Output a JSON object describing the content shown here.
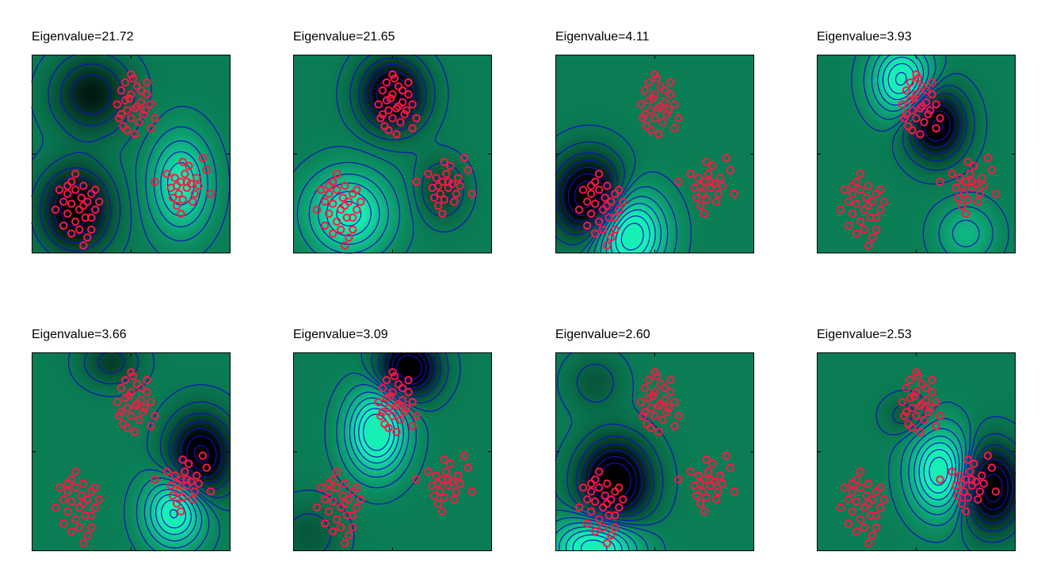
{
  "chart_data": [
    {
      "type": "heatmap",
      "title": "Eigenvalue=21.72",
      "xlim": [
        0,
        1
      ],
      "ylim": [
        0,
        1
      ],
      "colormap": [
        "#000000",
        "#0a7d55",
        "#16f0b4"
      ],
      "contour_color": "#1010c0",
      "marker_color": "#ff1744",
      "gaussians": [
        {
          "cx": 0.3,
          "cy": 0.8,
          "sx": 0.13,
          "sy": 0.13,
          "a": -0.8
        },
        {
          "cx": 0.22,
          "cy": 0.22,
          "sx": 0.12,
          "sy": 0.14,
          "a": -1.2
        },
        {
          "cx": 0.75,
          "cy": 0.35,
          "sx": 0.1,
          "sy": 0.16,
          "a": 1.0
        }
      ]
    },
    {
      "type": "heatmap",
      "title": "Eigenvalue=21.65",
      "xlim": [
        0,
        1
      ],
      "ylim": [
        0,
        1
      ],
      "colormap": [
        "#000000",
        "#0a7d55",
        "#16f0b4"
      ],
      "contour_color": "#1010c0",
      "marker_color": "#ff1744",
      "gaussians": [
        {
          "cx": 0.5,
          "cy": 0.8,
          "sx": 0.11,
          "sy": 0.12,
          "a": -1.3
        },
        {
          "cx": 0.28,
          "cy": 0.2,
          "sx": 0.14,
          "sy": 0.14,
          "a": 1.1
        },
        {
          "cx": 0.75,
          "cy": 0.32,
          "sx": 0.08,
          "sy": 0.1,
          "a": -0.5
        }
      ]
    },
    {
      "type": "heatmap",
      "title": "Eigenvalue=4.11",
      "xlim": [
        0,
        1
      ],
      "ylim": [
        0,
        1
      ],
      "colormap": [
        "#000000",
        "#0a7d55",
        "#16f0b4"
      ],
      "contour_color": "#1010c0",
      "marker_color": "#ff1744",
      "gaussians": [
        {
          "cx": 0.17,
          "cy": 0.28,
          "sx": 0.12,
          "sy": 0.14,
          "a": -1.5
        },
        {
          "cx": 0.37,
          "cy": 0.1,
          "sx": 0.12,
          "sy": 0.14,
          "a": 1.5
        }
      ]
    },
    {
      "type": "heatmap",
      "title": "Eigenvalue=3.93",
      "xlim": [
        0,
        1
      ],
      "ylim": [
        0,
        1
      ],
      "colormap": [
        "#000000",
        "#0a7d55",
        "#16f0b4"
      ],
      "contour_color": "#1010c0",
      "marker_color": "#ff1744",
      "gaussians": [
        {
          "cx": 0.43,
          "cy": 0.87,
          "sx": 0.1,
          "sy": 0.12,
          "a": 1.3
        },
        {
          "cx": 0.6,
          "cy": 0.65,
          "sx": 0.1,
          "sy": 0.12,
          "a": -1.3
        },
        {
          "cx": 0.75,
          "cy": 0.1,
          "sx": 0.1,
          "sy": 0.1,
          "a": 0.5
        }
      ]
    },
    {
      "type": "heatmap",
      "title": "Eigenvalue=3.66",
      "xlim": [
        0,
        1
      ],
      "ylim": [
        0,
        1
      ],
      "colormap": [
        "#000000",
        "#0a7d55",
        "#16f0b4"
      ],
      "contour_color": "#1010c0",
      "marker_color": "#ff1744",
      "gaussians": [
        {
          "cx": 0.85,
          "cy": 0.48,
          "sx": 0.11,
          "sy": 0.14,
          "a": -1.3
        },
        {
          "cx": 0.72,
          "cy": 0.2,
          "sx": 0.1,
          "sy": 0.12,
          "a": 1.3
        },
        {
          "cx": 0.4,
          "cy": 0.95,
          "sx": 0.1,
          "sy": 0.08,
          "a": -0.5
        }
      ]
    },
    {
      "type": "heatmap",
      "title": "Eigenvalue=3.09",
      "xlim": [
        0,
        1
      ],
      "ylim": [
        0,
        1
      ],
      "colormap": [
        "#000000",
        "#0a7d55",
        "#16f0b4"
      ],
      "contour_color": "#1010c0",
      "marker_color": "#ff1744",
      "gaussians": [
        {
          "cx": 0.58,
          "cy": 0.92,
          "sx": 0.1,
          "sy": 0.1,
          "a": -1.5
        },
        {
          "cx": 0.42,
          "cy": 0.6,
          "sx": 0.1,
          "sy": 0.14,
          "a": 1.5
        },
        {
          "cx": 0.08,
          "cy": 0.08,
          "sx": 0.12,
          "sy": 0.12,
          "a": -0.3
        }
      ]
    },
    {
      "type": "heatmap",
      "title": "Eigenvalue=2.60",
      "xlim": [
        0,
        1
      ],
      "ylim": [
        0,
        1
      ],
      "colormap": [
        "#000000",
        "#0a7d55",
        "#16f0b4"
      ],
      "contour_color": "#1010c0",
      "marker_color": "#ff1744",
      "gaussians": [
        {
          "cx": 0.3,
          "cy": 0.35,
          "sx": 0.12,
          "sy": 0.14,
          "a": -1.5
        },
        {
          "cx": 0.2,
          "cy": 0.02,
          "sx": 0.14,
          "sy": 0.1,
          "a": 1.4
        },
        {
          "cx": 0.2,
          "cy": 0.85,
          "sx": 0.1,
          "sy": 0.1,
          "a": -0.3
        }
      ]
    },
    {
      "type": "heatmap",
      "title": "Eigenvalue=2.53",
      "xlim": [
        0,
        1
      ],
      "ylim": [
        0,
        1
      ],
      "colormap": [
        "#000000",
        "#0a7d55",
        "#16f0b4"
      ],
      "contour_color": "#1010c0",
      "marker_color": "#ff1744",
      "gaussians": [
        {
          "cx": 0.62,
          "cy": 0.4,
          "sx": 0.1,
          "sy": 0.14,
          "a": 1.4
        },
        {
          "cx": 0.88,
          "cy": 0.32,
          "sx": 0.1,
          "sy": 0.14,
          "a": -1.4
        },
        {
          "cx": 0.45,
          "cy": 0.68,
          "sx": 0.08,
          "sy": 0.07,
          "a": -0.3
        }
      ]
    }
  ],
  "points": {
    "cluster_a": [
      [
        0.45,
        0.82
      ],
      [
        0.5,
        0.8
      ],
      [
        0.53,
        0.84
      ],
      [
        0.47,
        0.77
      ],
      [
        0.55,
        0.76
      ],
      [
        0.58,
        0.8
      ],
      [
        0.52,
        0.73
      ],
      [
        0.48,
        0.72
      ],
      [
        0.6,
        0.75
      ],
      [
        0.56,
        0.7
      ],
      [
        0.45,
        0.7
      ],
      [
        0.5,
        0.68
      ],
      [
        0.54,
        0.66
      ],
      [
        0.62,
        0.68
      ],
      [
        0.43,
        0.75
      ],
      [
        0.47,
        0.86
      ],
      [
        0.51,
        0.88
      ],
      [
        0.58,
        0.86
      ],
      [
        0.46,
        0.64
      ],
      [
        0.52,
        0.6
      ],
      [
        0.6,
        0.63
      ],
      [
        0.49,
        0.78
      ],
      [
        0.55,
        0.82
      ],
      [
        0.44,
        0.68
      ],
      [
        0.57,
        0.72
      ],
      [
        0.48,
        0.62
      ],
      [
        0.53,
        0.74
      ],
      [
        0.5,
        0.9
      ]
    ],
    "cluster_b": [
      [
        0.18,
        0.3
      ],
      [
        0.22,
        0.32
      ],
      [
        0.25,
        0.28
      ],
      [
        0.2,
        0.25
      ],
      [
        0.28,
        0.26
      ],
      [
        0.3,
        0.3
      ],
      [
        0.24,
        0.22
      ],
      [
        0.18,
        0.2
      ],
      [
        0.32,
        0.22
      ],
      [
        0.27,
        0.18
      ],
      [
        0.22,
        0.16
      ],
      [
        0.16,
        0.26
      ],
      [
        0.14,
        0.32
      ],
      [
        0.2,
        0.36
      ],
      [
        0.26,
        0.34
      ],
      [
        0.3,
        0.18
      ],
      [
        0.24,
        0.12
      ],
      [
        0.28,
        0.08
      ],
      [
        0.2,
        0.1
      ],
      [
        0.12,
        0.22
      ],
      [
        0.34,
        0.26
      ],
      [
        0.32,
        0.32
      ],
      [
        0.22,
        0.4
      ],
      [
        0.16,
        0.14
      ],
      [
        0.26,
        0.24
      ],
      [
        0.3,
        0.12
      ],
      [
        0.18,
        0.34
      ],
      [
        0.26,
        0.04
      ]
    ],
    "cluster_c": [
      [
        0.72,
        0.38
      ],
      [
        0.75,
        0.36
      ],
      [
        0.78,
        0.33
      ],
      [
        0.74,
        0.3
      ],
      [
        0.8,
        0.35
      ],
      [
        0.77,
        0.4
      ],
      [
        0.7,
        0.33
      ],
      [
        0.76,
        0.27
      ],
      [
        0.82,
        0.3
      ],
      [
        0.73,
        0.24
      ],
      [
        0.79,
        0.44
      ],
      [
        0.86,
        0.48
      ],
      [
        0.88,
        0.42
      ],
      [
        0.68,
        0.4
      ],
      [
        0.62,
        0.36
      ],
      [
        0.83,
        0.38
      ],
      [
        0.75,
        0.2
      ],
      [
        0.71,
        0.28
      ],
      [
        0.81,
        0.26
      ],
      [
        0.9,
        0.3
      ],
      [
        0.76,
        0.46
      ],
      [
        0.84,
        0.34
      ],
      [
        0.78,
        0.36
      ],
      [
        0.73,
        0.34
      ]
    ]
  }
}
